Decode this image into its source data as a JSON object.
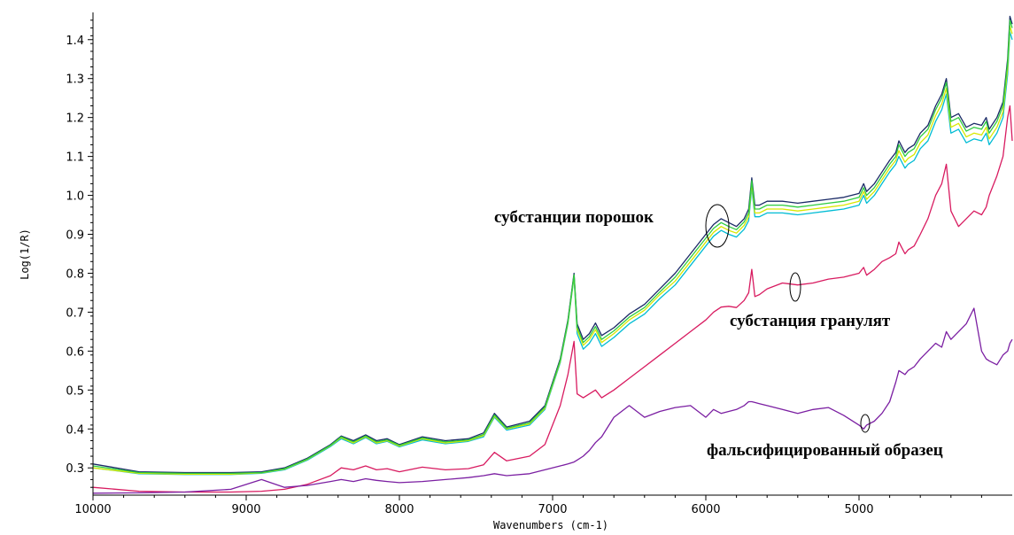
{
  "chart_data": {
    "type": "line",
    "xlabel": "Wavenumbers (cm-1)",
    "ylabel": "Log(1/R)",
    "xlim": [
      10000,
      4000
    ],
    "ylim": [
      0.23,
      1.47
    ],
    "x_ticks": [
      10000,
      9000,
      8000,
      7000,
      6000,
      5000
    ],
    "y_ticks": [
      0.3,
      0.4,
      0.5,
      0.6,
      0.7,
      0.8,
      0.9,
      1.0,
      1.1,
      1.2,
      1.3,
      1.4
    ],
    "x_tick_labels": [
      "10000",
      "9000",
      "8000",
      "7000",
      "6000",
      "5000"
    ],
    "y_tick_labels": [
      "0.3",
      "0.4",
      "0.5",
      "0.6",
      "0.7",
      "0.8",
      "0.9",
      "1.0",
      "1.1",
      "1.2",
      "1.3",
      "1.4"
    ],
    "grid": false,
    "annotations": {
      "powder": "субстанции порошок",
      "granulate": "субстанция гранулят",
      "falsified": "фальсифицированный образец"
    },
    "x": [
      10000,
      9700,
      9400,
      9100,
      8900,
      8750,
      8600,
      8450,
      8380,
      8300,
      8220,
      8150,
      8080,
      8000,
      7850,
      7700,
      7550,
      7450,
      7380,
      7300,
      7150,
      7050,
      6950,
      6900,
      6860,
      6840,
      6800,
      6760,
      6720,
      6680,
      6600,
      6500,
      6400,
      6300,
      6200,
      6100,
      6000,
      5950,
      5900,
      5850,
      5800,
      5750,
      5720,
      5700,
      5680,
      5650,
      5600,
      5500,
      5400,
      5300,
      5200,
      5100,
      5000,
      4970,
      4950,
      4900,
      4850,
      4800,
      4760,
      4740,
      4700,
      4680,
      4640,
      4600,
      4550,
      4500,
      4460,
      4430,
      4400,
      4350,
      4300,
      4250,
      4200,
      4170,
      4150,
      4100,
      4060,
      4030,
      4015,
      4000
    ],
    "series": [
      {
        "color": "#1a2a66",
        "values": [
          0.31,
          0.29,
          0.288,
          0.288,
          0.29,
          0.3,
          0.325,
          0.36,
          0.382,
          0.37,
          0.385,
          0.37,
          0.375,
          0.36,
          0.38,
          0.37,
          0.375,
          0.39,
          0.44,
          0.405,
          0.42,
          0.46,
          0.58,
          0.68,
          0.8,
          0.67,
          0.63,
          0.645,
          0.672,
          0.64,
          0.66,
          0.695,
          0.72,
          0.76,
          0.8,
          0.85,
          0.9,
          0.925,
          0.94,
          0.93,
          0.92,
          0.94,
          0.965,
          1.045,
          0.975,
          0.975,
          0.985,
          0.985,
          0.98,
          0.985,
          0.99,
          0.995,
          1.005,
          1.03,
          1.01,
          1.03,
          1.06,
          1.09,
          1.11,
          1.14,
          1.11,
          1.12,
          1.13,
          1.16,
          1.18,
          1.23,
          1.26,
          1.3,
          1.2,
          1.21,
          1.175,
          1.185,
          1.18,
          1.2,
          1.17,
          1.2,
          1.24,
          1.35,
          1.46,
          1.44
        ]
      },
      {
        "color": "#00bcd4",
        "values": [
          0.3,
          0.285,
          0.283,
          0.283,
          0.286,
          0.295,
          0.32,
          0.355,
          0.375,
          0.362,
          0.378,
          0.362,
          0.368,
          0.354,
          0.372,
          0.362,
          0.368,
          0.38,
          0.43,
          0.397,
          0.41,
          0.45,
          0.57,
          0.67,
          0.79,
          0.645,
          0.605,
          0.62,
          0.645,
          0.612,
          0.635,
          0.67,
          0.695,
          0.735,
          0.77,
          0.82,
          0.87,
          0.895,
          0.91,
          0.9,
          0.893,
          0.913,
          0.935,
          1.02,
          0.945,
          0.945,
          0.955,
          0.955,
          0.95,
          0.955,
          0.96,
          0.965,
          0.975,
          1.0,
          0.98,
          1.0,
          1.03,
          1.06,
          1.08,
          1.1,
          1.07,
          1.08,
          1.09,
          1.12,
          1.14,
          1.19,
          1.22,
          1.26,
          1.16,
          1.17,
          1.135,
          1.145,
          1.14,
          1.16,
          1.13,
          1.16,
          1.2,
          1.31,
          1.42,
          1.4
        ]
      },
      {
        "color": "#d8e800",
        "values": [
          0.3,
          0.286,
          0.284,
          0.284,
          0.287,
          0.297,
          0.322,
          0.357,
          0.378,
          0.364,
          0.38,
          0.364,
          0.37,
          0.356,
          0.375,
          0.364,
          0.37,
          0.383,
          0.433,
          0.4,
          0.413,
          0.453,
          0.573,
          0.673,
          0.793,
          0.655,
          0.615,
          0.63,
          0.655,
          0.622,
          0.645,
          0.68,
          0.705,
          0.745,
          0.78,
          0.83,
          0.88,
          0.905,
          0.92,
          0.91,
          0.903,
          0.923,
          0.945,
          1.03,
          0.955,
          0.955,
          0.965,
          0.965,
          0.96,
          0.965,
          0.97,
          0.975,
          0.985,
          1.01,
          0.99,
          1.01,
          1.04,
          1.07,
          1.09,
          1.115,
          1.085,
          1.095,
          1.105,
          1.135,
          1.155,
          1.205,
          1.235,
          1.275,
          1.175,
          1.185,
          1.15,
          1.16,
          1.155,
          1.175,
          1.145,
          1.175,
          1.215,
          1.325,
          1.435,
          1.415
        ]
      },
      {
        "color": "#2ecc40",
        "values": [
          0.305,
          0.288,
          0.286,
          0.286,
          0.288,
          0.298,
          0.323,
          0.358,
          0.38,
          0.367,
          0.382,
          0.367,
          0.372,
          0.358,
          0.377,
          0.367,
          0.372,
          0.386,
          0.436,
          0.402,
          0.416,
          0.456,
          0.576,
          0.676,
          0.796,
          0.662,
          0.622,
          0.637,
          0.663,
          0.63,
          0.652,
          0.687,
          0.712,
          0.752,
          0.79,
          0.84,
          0.89,
          0.915,
          0.93,
          0.92,
          0.912,
          0.932,
          0.955,
          1.038,
          0.965,
          0.965,
          0.975,
          0.975,
          0.97,
          0.975,
          0.98,
          0.985,
          0.995,
          1.02,
          1.0,
          1.02,
          1.05,
          1.08,
          1.1,
          1.13,
          1.1,
          1.11,
          1.12,
          1.15,
          1.17,
          1.22,
          1.25,
          1.29,
          1.19,
          1.2,
          1.165,
          1.175,
          1.17,
          1.19,
          1.16,
          1.19,
          1.23,
          1.34,
          1.45,
          1.43
        ]
      },
      {
        "color": "#d81b60",
        "values": [
          0.25,
          0.24,
          0.238,
          0.238,
          0.24,
          0.245,
          0.258,
          0.28,
          0.3,
          0.295,
          0.305,
          0.295,
          0.298,
          0.29,
          0.302,
          0.295,
          0.298,
          0.308,
          0.34,
          0.318,
          0.33,
          0.36,
          0.46,
          0.54,
          0.625,
          0.49,
          0.48,
          0.49,
          0.5,
          0.48,
          0.5,
          0.53,
          0.56,
          0.59,
          0.62,
          0.65,
          0.68,
          0.7,
          0.713,
          0.715,
          0.712,
          0.73,
          0.75,
          0.81,
          0.74,
          0.745,
          0.76,
          0.775,
          0.77,
          0.775,
          0.785,
          0.79,
          0.8,
          0.815,
          0.795,
          0.81,
          0.83,
          0.84,
          0.85,
          0.88,
          0.85,
          0.86,
          0.87,
          0.9,
          0.94,
          1.0,
          1.03,
          1.08,
          0.96,
          0.92,
          0.94,
          0.96,
          0.95,
          0.97,
          1.0,
          1.05,
          1.1,
          1.2,
          1.23,
          1.14
        ]
      },
      {
        "color": "#7b1fa2",
        "values": [
          0.235,
          0.236,
          0.238,
          0.245,
          0.27,
          0.25,
          0.255,
          0.265,
          0.27,
          0.265,
          0.272,
          0.268,
          0.265,
          0.262,
          0.265,
          0.27,
          0.275,
          0.28,
          0.285,
          0.28,
          0.285,
          0.295,
          0.305,
          0.31,
          0.315,
          0.32,
          0.33,
          0.345,
          0.365,
          0.38,
          0.43,
          0.46,
          0.43,
          0.445,
          0.455,
          0.46,
          0.43,
          0.45,
          0.44,
          0.445,
          0.45,
          0.46,
          0.47,
          0.47,
          0.468,
          0.465,
          0.46,
          0.45,
          0.44,
          0.45,
          0.455,
          0.435,
          0.41,
          0.4,
          0.41,
          0.42,
          0.44,
          0.47,
          0.52,
          0.55,
          0.54,
          0.55,
          0.56,
          0.58,
          0.6,
          0.62,
          0.61,
          0.65,
          0.63,
          0.65,
          0.67,
          0.71,
          0.6,
          0.58,
          0.575,
          0.565,
          0.59,
          0.6,
          0.62,
          0.63
        ]
      }
    ]
  }
}
